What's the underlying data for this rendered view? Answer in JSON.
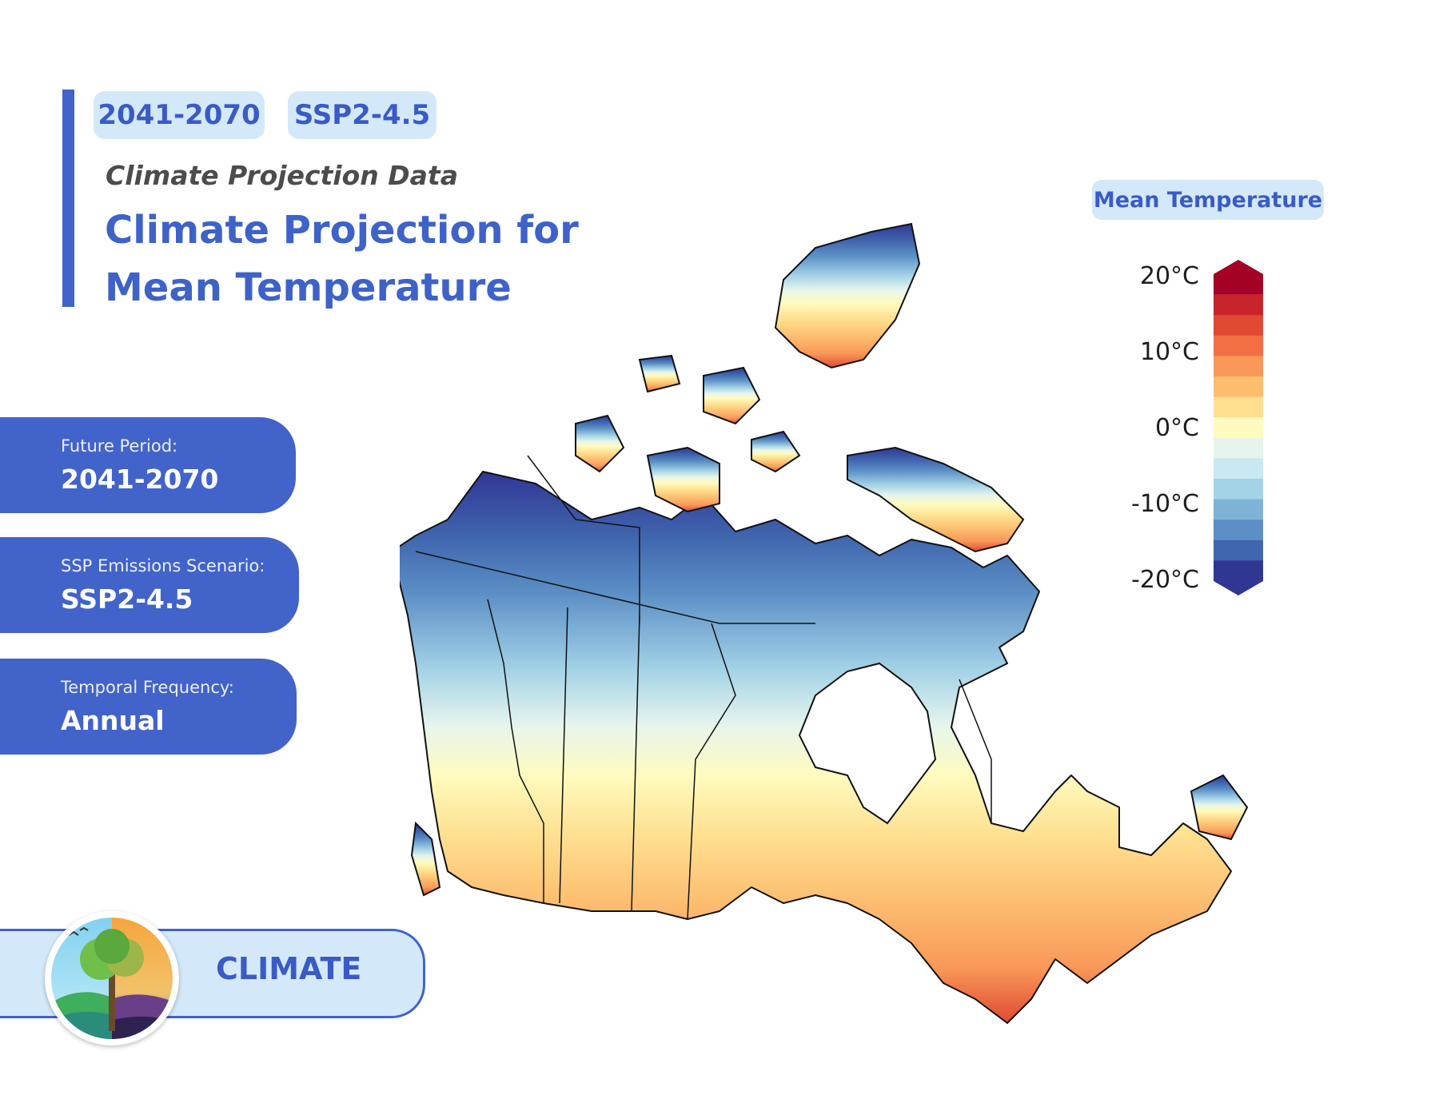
{
  "header": {
    "period_tag": "2041-2070",
    "scenario_tag": "SSP2-4.5",
    "subtitle": "Climate Projection Data",
    "title_line1": "Climate Projection for",
    "title_line2": "Mean Temperature"
  },
  "info": [
    {
      "label": "Future Period:",
      "value": "2041-2070"
    },
    {
      "label": "SSP Emissions Scenario:",
      "value": "SSP2-4.5"
    },
    {
      "label": "Temporal Frequency:",
      "value": "Annual"
    }
  ],
  "theme": {
    "label": "CLIMATE"
  },
  "legend": {
    "title": "Mean Temperature",
    "ticks": [
      "20°C",
      "10°C",
      "0°C",
      "-10°C",
      "-20°C"
    ],
    "colors": [
      "#a50026",
      "#c7242c",
      "#e04a32",
      "#f26f44",
      "#f99858",
      "#fdbe70",
      "#fee090",
      "#fffbbf",
      "#e6f5ec",
      "#c9e8f3",
      "#a4d2e7",
      "#7eb3d6",
      "#5b8fc5",
      "#4066ae",
      "#313695"
    ]
  },
  "colors": {
    "accent": "#4263c9",
    "tag_bg": "#d3e9f9",
    "title": "#3f62c8"
  }
}
